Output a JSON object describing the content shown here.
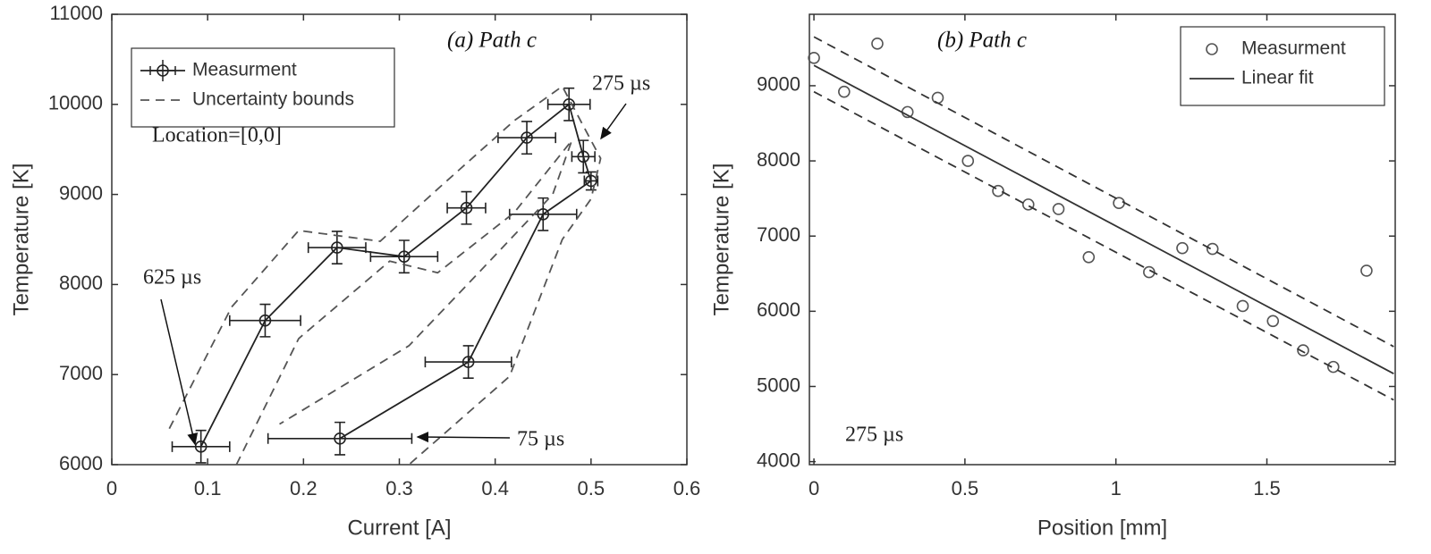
{
  "chart_data": [
    {
      "type": "line",
      "title": "(a) Path c",
      "xlabel": "Current [A]",
      "ylabel": "Temperature [K]",
      "xlim": [
        0,
        0.6
      ],
      "xticks": [
        0,
        0.1,
        0.2,
        0.3,
        0.4,
        0.5,
        0.6
      ],
      "ylim": [
        6000,
        11000
      ],
      "yticks": [
        6000,
        7000,
        8000,
        9000,
        10000,
        11000
      ],
      "legend": "upper left",
      "series": [
        {
          "name": "Measurment",
          "color": "#222222",
          "line": "solid",
          "marker": "circle",
          "x": [
            0.238,
            0.372,
            0.45,
            0.5,
            0.492,
            0.477,
            0.433,
            0.37,
            0.305,
            0.235,
            0.16,
            0.093
          ],
          "values": [
            6290,
            7140,
            8780,
            9150,
            9420,
            10000,
            9630,
            8850,
            8310,
            8410,
            7600,
            6200
          ],
          "xerr": [
            0.075,
            0.045,
            0.035,
            0.007,
            0.012,
            0.022,
            0.03,
            0.02,
            0.035,
            0.03,
            0.037,
            0.03
          ],
          "yerr": [
            180,
            180,
            180,
            100,
            180,
            180,
            180,
            180,
            180,
            180,
            180,
            180
          ]
        },
        {
          "name": "Uncertainty bounds",
          "color": "#555555",
          "line": "dashed",
          "x": [
            0.06,
            0.125,
            0.195,
            0.28,
            0.34,
            0.42,
            0.47,
            0.51,
            0.5,
            0.47,
            0.415,
            0.31,
            null,
            0.13,
            0.195,
            0.29,
            0.34,
            0.42,
            0.48,
            0.46,
            0.38,
            0.31,
            0.175
          ],
          "values": [
            6400,
            7750,
            8600,
            8480,
            9060,
            9820,
            10200,
            9400,
            8950,
            8500,
            6980,
            6000,
            null,
            6000,
            7400,
            8260,
            8130,
            8800,
            9600,
            9000,
            8100,
            7320,
            6450
          ]
        }
      ],
      "annotations": [
        "Location=[0,0]",
        "275 µs",
        "625 µs",
        "75 µs"
      ]
    },
    {
      "type": "scatter",
      "title": "(b) Path c",
      "xlabel": "Position [mm]",
      "ylabel": "Temperature [K]",
      "xlim": [
        -0.015,
        1.925
      ],
      "xticks": [
        0,
        0.5,
        1,
        1.5
      ],
      "ylim": [
        3960,
        9950
      ],
      "yticks": [
        4000,
        5000,
        6000,
        7000,
        8000,
        9000
      ],
      "legend": "upper right",
      "series": [
        {
          "name": "Measurment",
          "color": "#555555",
          "line": "none",
          "marker": "circle",
          "x": [
            0,
            0.1,
            0.21,
            0.31,
            0.41,
            0.51,
            0.61,
            0.71,
            0.81,
            0.91,
            1.01,
            1.11,
            1.22,
            1.32,
            1.42,
            1.52,
            1.62,
            1.72,
            1.83
          ],
          "values": [
            9370,
            8920,
            9560,
            8650,
            8840,
            8000,
            7600,
            7420,
            7360,
            6720,
            7440,
            6520,
            6840,
            6830,
            6070,
            5870,
            5480,
            5260,
            6540
          ]
        },
        {
          "name": "Linear fit",
          "color": "#333333",
          "line": "solid",
          "x": [
            0,
            1.92
          ],
          "values": [
            9270,
            5170
          ]
        }
      ],
      "fit_bounds": [
        {
          "x": [
            0,
            1.92
          ],
          "values": [
            9650,
            5530
          ]
        },
        {
          "x": [
            0,
            1.92
          ],
          "values": [
            8920,
            4820
          ]
        }
      ],
      "annotations": [
        "275 µs"
      ]
    }
  ]
}
